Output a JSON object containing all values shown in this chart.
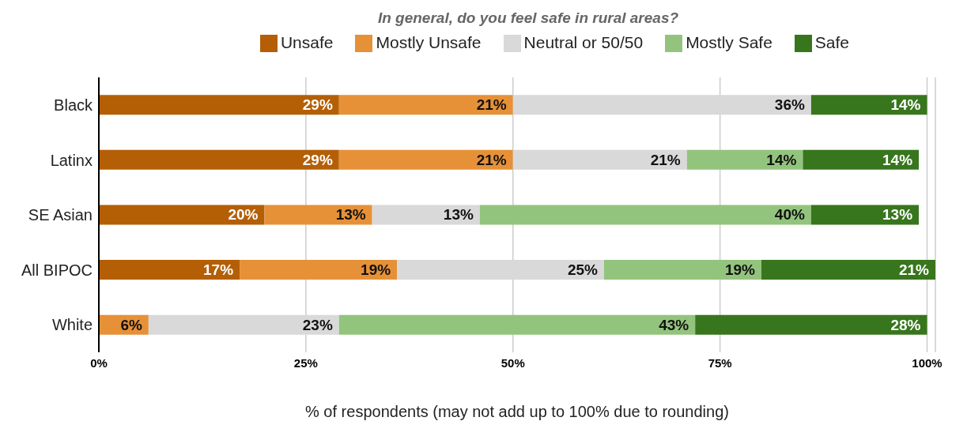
{
  "chart_data": {
    "type": "bar",
    "orientation": "horizontal",
    "stacked": true,
    "title": "In general, do you feel safe in rural areas?",
    "xlabel": "% of respondents (may not add up to 100% due to rounding)",
    "categories": [
      "Black",
      "Latinx",
      "SE Asian",
      "All BIPOC",
      "White"
    ],
    "series": [
      {
        "name": "Unsafe",
        "color": "#b45f06",
        "values": [
          29,
          29,
          20,
          17,
          null
        ],
        "value_labels": [
          "29%",
          "29%",
          "20%",
          "17%",
          null
        ]
      },
      {
        "name": "Mostly Unsafe",
        "color": "#e69138",
        "values": [
          21,
          21,
          13,
          19,
          6
        ],
        "value_labels": [
          "21%",
          "21%",
          "13%",
          "19%",
          "6%"
        ]
      },
      {
        "name": "Neutral or 50/50",
        "color": "#d9d9d9",
        "values": [
          36,
          21,
          13,
          25,
          23
        ],
        "value_labels": [
          "36%",
          "21%",
          "13%",
          "25%",
          "23%"
        ]
      },
      {
        "name": "Mostly Safe",
        "color": "#93c47d",
        "values": [
          null,
          14,
          40,
          19,
          43
        ],
        "value_labels": [
          null,
          "14%",
          "40%",
          "19%",
          "43%"
        ]
      },
      {
        "name": "Safe",
        "color": "#38761d",
        "values": [
          14,
          14,
          13,
          21,
          28
        ],
        "value_labels": [
          "14%",
          "14%",
          "13%",
          "21%",
          "28%"
        ]
      }
    ],
    "xlim": [
      0,
      101
    ],
    "xticks": [
      {
        "value": 0,
        "label": "0%"
      },
      {
        "value": 25,
        "label": "25%"
      },
      {
        "value": 50,
        "label": "50%"
      },
      {
        "value": 75,
        "label": "75%"
      },
      {
        "value": 100,
        "label": "100%"
      }
    ],
    "grid": "x",
    "legend": "top"
  }
}
